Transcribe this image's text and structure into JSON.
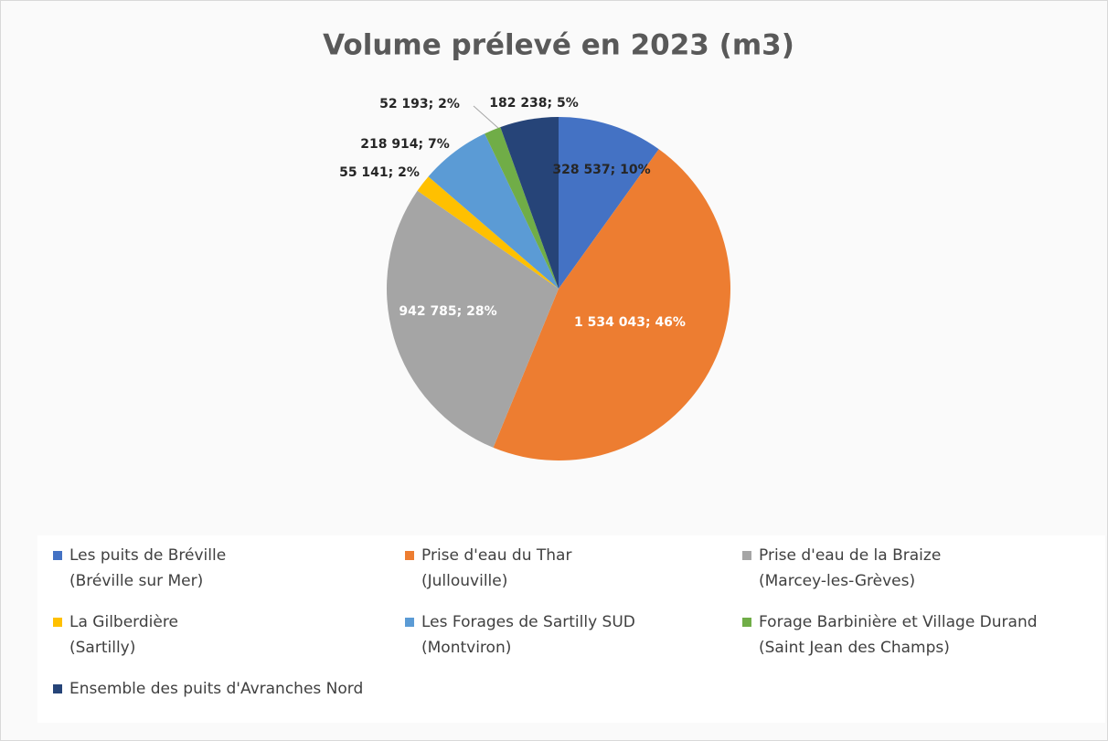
{
  "chart_data": {
    "type": "pie",
    "title": "Volume prélevé en 2023 (m3)",
    "series": [
      {
        "name": "Les puits de Bréville\n(Bréville sur Mer)",
        "color": "#4472c4",
        "values": [
          328537
        ],
        "value_labels": [
          "328 537; 10%"
        ]
      },
      {
        "name": "Prise d'eau du Thar\n(Jullouville)",
        "color": "#ed7d31",
        "values": [
          1534043
        ],
        "value_labels": [
          "1 534 043; 46%"
        ]
      },
      {
        "name": "Prise d'eau de la Braize\n(Marcey-les-Grèves)",
        "color": "#a5a5a5",
        "values": [
          942785
        ],
        "value_labels": [
          "942 785; 28%"
        ]
      },
      {
        "name": "La Gilberdière\n(Sartilly)",
        "color": "#ffc000",
        "values": [
          55141
        ],
        "value_labels": [
          "55 141; 2%"
        ]
      },
      {
        "name": "Les Forages de Sartilly SUD\n(Montviron)",
        "color": "#5b9bd5",
        "values": [
          218914
        ],
        "value_labels": [
          "218 914; 7%"
        ]
      },
      {
        "name": "Forage Barbinière et Village Durand\n(Saint Jean des Champs)",
        "color": "#70ad47",
        "values": [
          52193
        ],
        "value_labels": [
          "52 193; 2%"
        ]
      },
      {
        "name": "Ensemble des puits d'Avranches Nord",
        "color": "#264478",
        "values": [
          182238
        ],
        "value_labels": [
          "182 238; 5%"
        ]
      }
    ],
    "legend": "bottom"
  }
}
